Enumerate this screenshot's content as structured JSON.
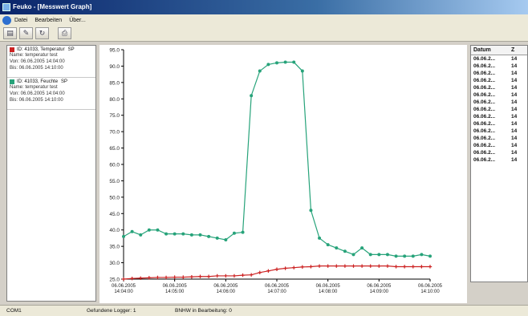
{
  "window": {
    "title": "Feuko - [Messwert Graph]"
  },
  "menu": [
    "Datei",
    "Bearbeiten",
    "Über..."
  ],
  "toolbar": [
    {
      "icon": "graph-icon"
    },
    {
      "icon": "edit-icon"
    },
    {
      "icon": "refresh-icon"
    },
    {
      "icon": "export-icon"
    }
  ],
  "series_panel": [
    {
      "title": "ID: 41033, Temperatur",
      "badge": "SP",
      "color": "#cc2222",
      "lines": [
        "Name: temperatur test",
        "Von: 06.06.2005 14:04:00",
        "Bis: 06.06.2005 14:10:00"
      ]
    },
    {
      "title": "ID: 41033, Feuchte",
      "badge": "SP",
      "color": "#27a37a",
      "lines": [
        "Name: temperatur test",
        "Von: 06.06.2005 14:04:00",
        "Bis: 06.06.2005 14:10:00"
      ]
    }
  ],
  "data_table": {
    "headers": [
      "Datum",
      "Z"
    ],
    "rows": [
      [
        "06.06.2...",
        "14"
      ],
      [
        "06.06.2...",
        "14"
      ],
      [
        "06.06.2...",
        "14"
      ],
      [
        "06.06.2...",
        "14"
      ],
      [
        "06.06.2...",
        "14"
      ],
      [
        "06.06.2...",
        "14"
      ],
      [
        "06.06.2...",
        "14"
      ],
      [
        "06.06.2...",
        "14"
      ],
      [
        "06.06.2...",
        "14"
      ],
      [
        "06.06.2...",
        "14"
      ],
      [
        "06.06.2...",
        "14"
      ],
      [
        "06.06.2...",
        "14"
      ],
      [
        "06.06.2...",
        "14"
      ],
      [
        "06.06.2...",
        "14"
      ],
      [
        "06.06.2...",
        "14"
      ]
    ]
  },
  "status": {
    "port": "COM1",
    "loggers": "Gefundene Logger: 1",
    "work": "BNHW in Bearbeitung: 0"
  },
  "chart_data": {
    "type": "line",
    "ylim": [
      25,
      95
    ],
    "yticks": [
      "25.0",
      "30.0",
      "35.0",
      "40.0",
      "45.0",
      "50.0",
      "55.0",
      "60.0",
      "65.0",
      "70.0",
      "75.0",
      "80.0",
      "85.0",
      "90.0",
      "95.0"
    ],
    "xlim": [
      0,
      36
    ],
    "xticks": [
      {
        "x": 0,
        "date": "06.06.2005",
        "time": "14:04:00"
      },
      {
        "x": 6,
        "date": "06.06.2005",
        "time": "14:05:00"
      },
      {
        "x": 12,
        "date": "06.06.2005",
        "time": "14:06:00"
      },
      {
        "x": 18,
        "date": "06.06.2005",
        "time": "14:07:00"
      },
      {
        "x": 24,
        "date": "06.06.2005",
        "time": "14:08:00"
      },
      {
        "x": 30,
        "date": "06.06.2005",
        "time": "14:09:00"
      },
      {
        "x": 36,
        "date": "06.06.2005",
        "time": "14:10:00"
      }
    ],
    "grid": false,
    "series": [
      {
        "color": "#27a37a",
        "marker": "dot",
        "values": [
          38,
          39.5,
          38.5,
          40,
          40,
          38.8,
          38.8,
          38.8,
          38.5,
          38.5,
          38,
          37.5,
          37,
          39,
          39.3,
          81,
          88.5,
          90.5,
          91,
          91.2,
          91.2,
          88.5,
          46,
          37.5,
          35.5,
          34.5,
          33.5,
          32.5,
          34.5,
          32.5,
          32.5,
          32.5,
          32,
          32,
          32,
          32.5,
          32
        ]
      },
      {
        "color": "#cc2222",
        "marker": "plus",
        "values": [
          25,
          25.2,
          25.3,
          25.4,
          25.5,
          25.5,
          25.6,
          25.6,
          25.7,
          25.8,
          25.8,
          26,
          26,
          26,
          26.2,
          26.3,
          27,
          27.5,
          28,
          28.3,
          28.5,
          28.7,
          28.8,
          29,
          29,
          29,
          29,
          29,
          29,
          29,
          29,
          29,
          28.8,
          28.8,
          28.8,
          28.8,
          28.8
        ]
      }
    ]
  }
}
